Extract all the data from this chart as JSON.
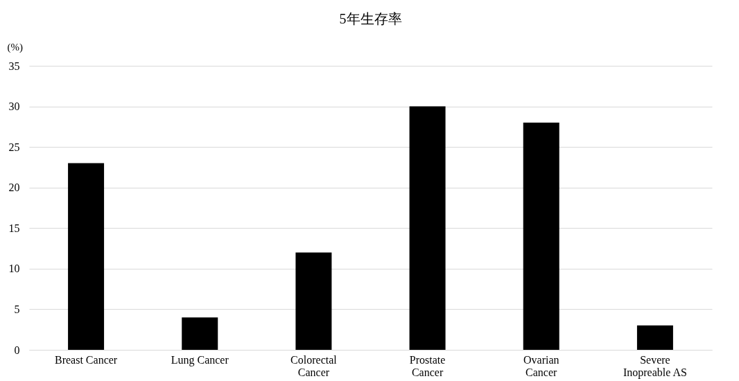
{
  "chart_data": {
    "type": "bar",
    "title": "5年生存率",
    "ylabel": "(%)",
    "categories": [
      "Breast Cancer",
      "Lung Cancer",
      "Colorectal Cancer",
      "Prostate Cancer",
      "Ovarian Cancer",
      "Severe Inopreable AS"
    ],
    "values": [
      23,
      4,
      12,
      30,
      28,
      3
    ],
    "color": "#000000",
    "ylim": [
      0,
      35
    ],
    "yticks": [
      0,
      5,
      10,
      15,
      20,
      25,
      30,
      35
    ],
    "grid": "y"
  }
}
